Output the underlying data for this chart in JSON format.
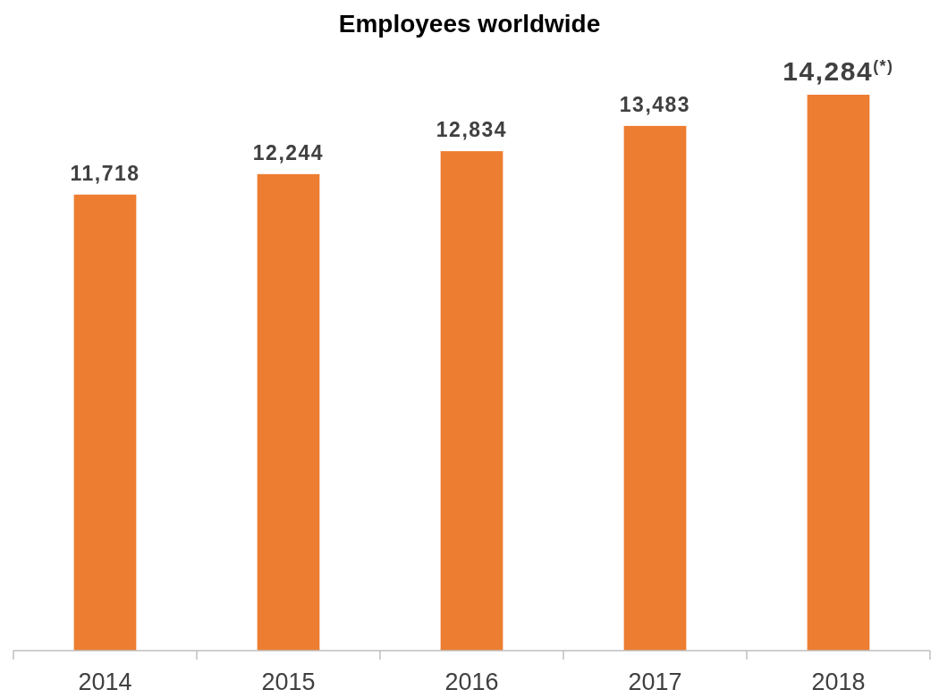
{
  "chart_data": {
    "type": "bar",
    "title": "Employees worldwide",
    "categories": [
      "2014",
      "2015",
      "2016",
      "2017",
      "2018"
    ],
    "values": [
      11718,
      12244,
      12834,
      13483,
      14284
    ],
    "value_labels": [
      "11,718",
      "12,244",
      "12,834",
      "13,483",
      "14,284$^{(*)}$"
    ],
    "color": "#ed7d31",
    "tick_labels": "x"
  }
}
